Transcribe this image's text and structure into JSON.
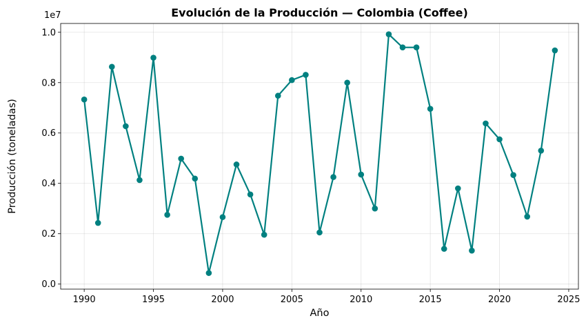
{
  "chart_data": {
    "type": "line",
    "title": "Evolución de la Producción — Colombia (Coffee)",
    "xlabel": "Año",
    "ylabel": "Producción (toneladas)",
    "y_offset_label": "1e7",
    "xlim": [
      1988.3,
      2025.7
    ],
    "ylim": [
      -0.02,
      1.035
    ],
    "x_ticks": [
      1990,
      1995,
      2000,
      2005,
      2010,
      2015,
      2020,
      2025
    ],
    "y_ticks": [
      0.0,
      0.2,
      0.4,
      0.6,
      0.8,
      1.0
    ],
    "y_tick_labels": [
      "0.0",
      "0.2",
      "0.4",
      "0.6",
      "0.8",
      "1.0"
    ],
    "grid": true,
    "color": "#008080",
    "series": [
      {
        "x": [
          1990,
          1991,
          1992,
          1993,
          1994,
          1995,
          1996,
          1997,
          1998,
          1999,
          2000,
          2001,
          2002,
          2003,
          2004,
          2005,
          2006,
          2007,
          2008,
          2009,
          2010,
          2011,
          2012,
          2013,
          2014,
          2015,
          2016,
          2017,
          2018,
          2019,
          2020,
          2021,
          2022,
          2023,
          2024
        ],
        "values": [
          0.733,
          0.243,
          0.863,
          0.627,
          0.413,
          0.899,
          0.275,
          0.498,
          0.419,
          0.044,
          0.266,
          0.475,
          0.356,
          0.196,
          0.748,
          0.81,
          0.831,
          0.205,
          0.425,
          0.8,
          0.435,
          0.3,
          0.992,
          0.94,
          0.94,
          0.696,
          0.14,
          0.38,
          0.133,
          0.638,
          0.575,
          0.433,
          0.268,
          0.53,
          0.928
        ]
      }
    ]
  }
}
